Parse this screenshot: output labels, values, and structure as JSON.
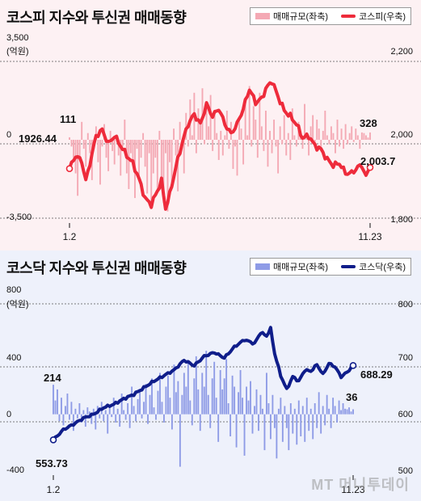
{
  "watermark": "MT 머니투데이",
  "chart_data": [
    {
      "type": "bar+line",
      "title": "코스피 지수와 투신권 매매동향",
      "legend": [
        {
          "name": "매매규모(좌축)",
          "color": "#f4a9b4",
          "kind": "bar"
        },
        {
          "name": "코스피(우축)",
          "color": "#ee2b3b",
          "kind": "line"
        }
      ],
      "left_axis": {
        "unit": "(억원)",
        "ylim": [
          -3500,
          3500
        ],
        "ticks": [
          "3,500",
          "0",
          "-3,500"
        ]
      },
      "right_axis": {
        "ylim": [
          1800,
          2200
        ],
        "ticks": [
          "2,200",
          "2,000",
          "1,800"
        ]
      },
      "x_labels": [
        "1.2",
        "11.23"
      ],
      "line_anchors": [
        [
          0,
          1926.44
        ],
        [
          3,
          1960
        ],
        [
          6,
          1945
        ],
        [
          8,
          1895
        ],
        [
          10,
          1940
        ],
        [
          13,
          2010
        ],
        [
          16,
          2025
        ],
        [
          19,
          1990
        ],
        [
          22,
          2010
        ],
        [
          25,
          1985
        ],
        [
          28,
          1960
        ],
        [
          31,
          1940
        ],
        [
          34,
          1900
        ],
        [
          37,
          1850
        ],
        [
          40,
          1835
        ],
        [
          43,
          1870
        ],
        [
          45,
          1895
        ],
        [
          47,
          1825
        ],
        [
          49,
          1860
        ],
        [
          52,
          1930
        ],
        [
          55,
          1990
        ],
        [
          58,
          2040
        ],
        [
          61,
          2065
        ],
        [
          64,
          2040
        ],
        [
          67,
          2090
        ],
        [
          70,
          2060
        ],
        [
          73,
          2080
        ],
        [
          76,
          2040
        ],
        [
          79,
          2015
        ],
        [
          82,
          2040
        ],
        [
          85,
          2080
        ],
        [
          88,
          2130
        ],
        [
          91,
          2095
        ],
        [
          94,
          2105
        ],
        [
          96,
          2130
        ],
        [
          99,
          2150
        ],
        [
          102,
          2110
        ],
        [
          105,
          2075
        ],
        [
          108,
          2060
        ],
        [
          111,
          2040
        ],
        [
          114,
          2005
        ],
        [
          117,
          2010
        ],
        [
          120,
          1985
        ],
        [
          123,
          1975
        ],
        [
          126,
          1950
        ],
        [
          129,
          1935
        ],
        [
          132,
          1940
        ],
        [
          135,
          1915
        ],
        [
          138,
          1915
        ],
        [
          141,
          1930
        ],
        [
          143,
          1935
        ],
        [
          145,
          1905
        ],
        [
          147,
          1935
        ],
        [
          149,
          2003.7
        ]
      ],
      "bar_values": [
        111,
        -300,
        -800,
        -1500,
        -2500,
        -900,
        800,
        -400,
        -1200,
        300,
        -600,
        -1800,
        -400,
        600,
        -1000,
        -2000,
        -300,
        700,
        -800,
        -1400,
        400,
        -500,
        -1100,
        200,
        -700,
        -1600,
        -300,
        900,
        -1500,
        -2200,
        -600,
        -1000,
        -2600,
        -400,
        -1800,
        -800,
        300,
        -1200,
        -2400,
        -600,
        -3000,
        -1500,
        -800,
        -2200,
        400,
        -1800,
        -2800,
        -600,
        -3200,
        -1000,
        -2000,
        500,
        -700,
        -2300,
        800,
        -400,
        -1500,
        1200,
        -300,
        1800,
        200,
        2100,
        -600,
        1400,
        900,
        2300,
        -200,
        1500,
        600,
        2000,
        -500,
        1100,
        300,
        -900,
        400,
        -700,
        200,
        1300,
        -400,
        800,
        -1300,
        -300,
        -1600,
        1000,
        500,
        -1100,
        1700,
        200,
        2400,
        -300,
        1500,
        900,
        -800,
        2100,
        600,
        -500,
        1300,
        -1200,
        400,
        -600,
        900,
        -300,
        -1500,
        600,
        -200,
        1100,
        -700,
        300,
        -900,
        1400,
        200,
        -300,
        800,
        400,
        -400,
        1600,
        200,
        -700,
        600,
        1100,
        -300,
        900,
        500,
        -500,
        400,
        1300,
        200,
        -200,
        600,
        300,
        -600,
        900,
        -300,
        500,
        -400,
        700,
        -200,
        300,
        600,
        -100,
        500,
        200,
        -400,
        328,
        300,
        200,
        100,
        328
      ],
      "annotations": [
        {
          "label": "111",
          "kind": "bar",
          "index": 0
        },
        {
          "label": "1926.44",
          "kind": "line",
          "index": 0
        },
        {
          "label": "328",
          "kind": "bar",
          "index": 149
        },
        {
          "label": "2,003.7",
          "kind": "line",
          "index": 149
        }
      ]
    },
    {
      "type": "bar+line",
      "title": "코스닥 지수와 투신권 매매동향",
      "legend": [
        {
          "name": "매매규모(좌축)",
          "color": "#8e9be6",
          "kind": "bar"
        },
        {
          "name": "코스닥(우축)",
          "color": "#0f1d8a",
          "kind": "line"
        }
      ],
      "left_axis": {
        "unit": "(억원)",
        "ylim": [
          -400,
          800
        ],
        "ticks": [
          "800",
          "400",
          "0",
          "-400"
        ]
      },
      "right_axis": {
        "ylim": [
          500,
          800
        ],
        "ticks": [
          "800",
          "700",
          "600",
          "500"
        ]
      },
      "x_labels": [
        "1.2",
        "11.23"
      ],
      "line_anchors": [
        [
          0,
          553.73
        ],
        [
          5,
          572
        ],
        [
          10,
          582
        ],
        [
          15,
          593
        ],
        [
          20,
          600
        ],
        [
          25,
          612
        ],
        [
          30,
          618
        ],
        [
          35,
          628
        ],
        [
          40,
          636
        ],
        [
          45,
          648
        ],
        [
          50,
          660
        ],
        [
          55,
          670
        ],
        [
          60,
          680
        ],
        [
          65,
          698
        ],
        [
          70,
          688
        ],
        [
          75,
          705
        ],
        [
          80,
          712
        ],
        [
          85,
          702
        ],
        [
          90,
          722
        ],
        [
          95,
          735
        ],
        [
          100,
          728
        ],
        [
          103,
          748
        ],
        [
          106,
          742
        ],
        [
          108,
          755
        ],
        [
          110,
          710
        ],
        [
          113,
          670
        ],
        [
          116,
          645
        ],
        [
          119,
          668
        ],
        [
          122,
          660
        ],
        [
          125,
          680
        ],
        [
          128,
          678
        ],
        [
          131,
          690
        ],
        [
          134,
          672
        ],
        [
          137,
          692
        ],
        [
          140,
          686
        ],
        [
          143,
          668
        ],
        [
          146,
          676
        ],
        [
          149,
          688.29
        ]
      ],
      "bar_values": [
        214,
        100,
        180,
        -50,
        120,
        -80,
        60,
        150,
        -40,
        90,
        -120,
        40,
        -30,
        80,
        -60,
        30,
        -90,
        50,
        20,
        -70,
        40,
        -110,
        60,
        -30,
        90,
        -50,
        30,
        -140,
        70,
        -20,
        120,
        -60,
        40,
        -90,
        150,
        30,
        -40,
        80,
        -100,
        200,
        60,
        -50,
        110,
        180,
        -30,
        90,
        220,
        -70,
        140,
        260,
        50,
        -40,
        170,
        300,
        90,
        -60,
        200,
        280,
        120,
        -110,
        360,
        160,
        240,
        -380,
        140,
        300,
        200,
        380,
        100,
        -80,
        260,
        420,
        180,
        -120,
        300,
        200,
        460,
        140,
        -100,
        260,
        380,
        120,
        -200,
        320,
        180,
        260,
        400,
        80,
        -160,
        280,
        200,
        -240,
        160,
        320,
        120,
        -300,
        200,
        100,
        240,
        -140,
        60,
        180,
        -120,
        140,
        40,
        -260,
        300,
        80,
        -180,
        140,
        -100,
        -320,
        40,
        120,
        -200,
        60,
        -100,
        -260,
        80,
        -140,
        40,
        -220,
        100,
        -160,
        60,
        -200,
        120,
        -120,
        40,
        -180,
        80,
        -100,
        160,
        -140,
        60,
        -80,
        140,
        40,
        -100,
        120,
        60,
        -60,
        100,
        30,
        80,
        40,
        36,
        50,
        20,
        36
      ],
      "annotations": [
        {
          "label": "214",
          "kind": "bar",
          "index": 0
        },
        {
          "label": "553.73",
          "kind": "line",
          "index": 0
        },
        {
          "label": "36",
          "kind": "bar",
          "index": 149
        },
        {
          "label": "688.29",
          "kind": "line",
          "index": 149
        }
      ]
    }
  ]
}
